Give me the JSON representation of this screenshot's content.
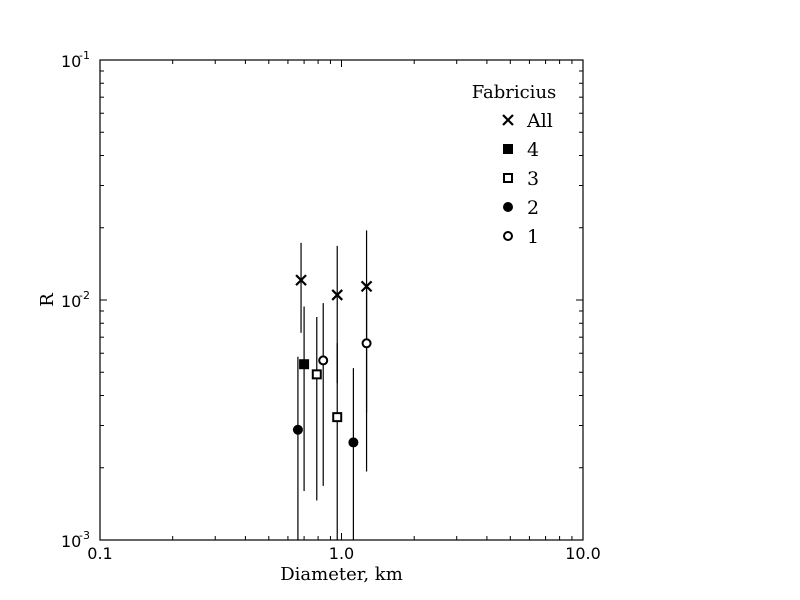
{
  "chart_data": {
    "type": "scatter",
    "title": "",
    "xlabel": "Diameter, km",
    "ylabel": "R",
    "xscale": "log",
    "yscale": "log",
    "xlim": [
      0.1,
      10.0
    ],
    "ylim": [
      0.001,
      0.1
    ],
    "grid": false,
    "x_tick_labels": [
      "0.1",
      "1.0",
      "10.0"
    ],
    "y_tick_labels": [
      {
        "base": "10",
        "exp": "-3"
      },
      {
        "base": "10",
        "exp": "-2"
      },
      {
        "base": "10",
        "exp": "-1"
      }
    ],
    "legend": {
      "title": "Fabricius",
      "position": "top-right"
    },
    "series": [
      {
        "name": "All",
        "marker": "x",
        "points": [
          {
            "x": 0.68,
            "y": 0.0121,
            "ylo": 0.0073,
            "yhi": 0.0173
          },
          {
            "x": 0.96,
            "y": 0.0105,
            "ylo": 0.0045,
            "yhi": 0.0168
          },
          {
            "x": 1.27,
            "y": 0.0114,
            "ylo": 0.0034,
            "yhi": 0.0195
          }
        ]
      },
      {
        "name": "4",
        "marker": "filled-square",
        "points": [
          {
            "x": 0.7,
            "y": 0.0054,
            "ylo": 0.0016,
            "yhi": 0.0094
          }
        ]
      },
      {
        "name": "3",
        "marker": "open-square",
        "points": [
          {
            "x": 0.79,
            "y": 0.0049,
            "ylo": 0.00146,
            "yhi": 0.0085
          },
          {
            "x": 0.96,
            "y": 0.00325,
            "ylo": 0.001,
            "yhi": 0.0066
          }
        ]
      },
      {
        "name": "2",
        "marker": "filled-circle",
        "points": [
          {
            "x": 0.66,
            "y": 0.00288,
            "ylo": 0.001,
            "yhi": 0.0058
          },
          {
            "x": 1.12,
            "y": 0.00255,
            "ylo": 0.001,
            "yhi": 0.0052
          }
        ]
      },
      {
        "name": "1",
        "marker": "open-circle",
        "points": [
          {
            "x": 0.84,
            "y": 0.0056,
            "ylo": 0.00168,
            "yhi": 0.0097
          },
          {
            "x": 1.27,
            "y": 0.0066,
            "ylo": 0.00193,
            "yhi": 0.0112
          }
        ]
      }
    ]
  }
}
